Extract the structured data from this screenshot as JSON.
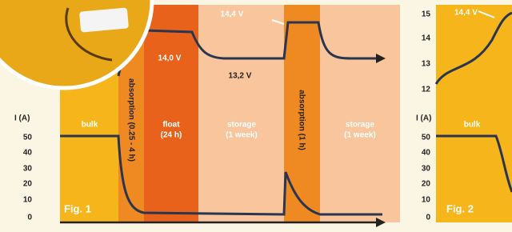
{
  "fig1": {
    "title": "Fig. 1",
    "current_axis_label": "I (A)",
    "current_ticks": [
      "50",
      "40",
      "30",
      "20",
      "10",
      "0"
    ],
    "phases": [
      {
        "lines": [
          "bulk"
        ]
      },
      {
        "lines": [
          "absorption (0.25 - 4 h)"
        ]
      },
      {
        "lines": [
          "float",
          "(24 h)"
        ]
      },
      {
        "lines": [
          "storage",
          "(1 week)"
        ]
      },
      {
        "lines": [
          "absorption (1 h)"
        ]
      },
      {
        "lines": [
          "storage",
          "(1 week)"
        ]
      }
    ],
    "voltage_labels": [
      "14,4 V",
      "14,0 V",
      "13,2 V"
    ]
  },
  "fig2": {
    "title": "Fig. 2",
    "voltage_ticks": [
      "15",
      "14",
      "13",
      "12"
    ],
    "current_axis_label": "I (A)",
    "current_ticks": [
      "50",
      "40",
      "30",
      "20",
      "10",
      "0"
    ],
    "phase": "bulk",
    "voltage_label": "14,4 V"
  }
}
